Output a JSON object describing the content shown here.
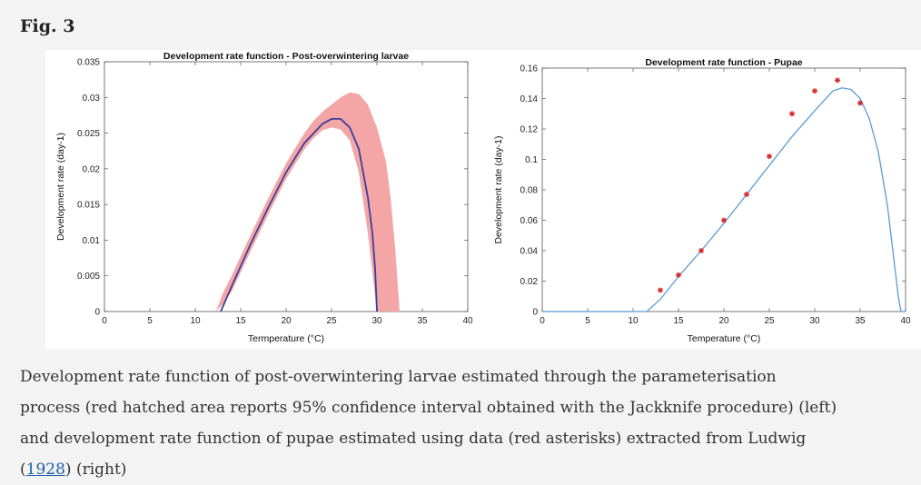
{
  "figure": {
    "label": "Fig. 3"
  },
  "caption": {
    "line1": "Development rate function of post-overwintering larvae estimated through the parameterisation",
    "line2": "process (red hatched area reports 95% confidence interval obtained with the Jackknife procedure) (left)",
    "line3": "and development rate function of pupae estimated using data (red asterisks) extracted from Ludwig",
    "line4_open": "(",
    "line4_link": "1928",
    "line4_close": ") (right)"
  },
  "chart_data": [
    {
      "type": "line",
      "title": "Development rate function - Post-overwintering larvae",
      "xlabel": "Termperature (°C)",
      "ylabel": "Development rate (day-1)",
      "xlim": [
        0,
        40
      ],
      "ylim": [
        0,
        0.035
      ],
      "xticks": [
        "0",
        "5",
        "10",
        "15",
        "20",
        "25",
        "30",
        "35",
        "40"
      ],
      "yticks": [
        "0",
        "0.005",
        "0.01",
        "0.015",
        "0.02",
        "0.025",
        "0.03",
        "0.035"
      ],
      "colors": {
        "curve": "#3b3f9b",
        "band": "#f4a6a6"
      },
      "series": [
        {
          "x": [
            12.8,
            14,
            16,
            18,
            20,
            22,
            24,
            25,
            26,
            27,
            28,
            29,
            29.5,
            29.8,
            30
          ],
          "values": [
            0,
            0.0035,
            0.0092,
            0.0145,
            0.0195,
            0.0236,
            0.0263,
            0.027,
            0.027,
            0.0258,
            0.0228,
            0.016,
            0.011,
            0.006,
            0
          ]
        }
      ],
      "confidence_band": {
        "x": [
          12.3,
          13,
          14,
          16,
          18,
          20,
          22,
          23,
          24,
          25,
          26,
          27,
          28,
          29,
          30,
          31,
          31.5,
          32,
          32.5
        ],
        "upper": [
          0,
          0.0025,
          0.005,
          0.0105,
          0.0158,
          0.0208,
          0.025,
          0.0267,
          0.028,
          0.029,
          0.03,
          0.0307,
          0.0305,
          0.029,
          0.0258,
          0.021,
          0.016,
          0.009,
          0
        ],
        "lower": [
          0,
          0.001,
          0.0028,
          0.0082,
          0.0135,
          0.0186,
          0.0227,
          0.0243,
          0.0254,
          0.0258,
          0.0255,
          0.024,
          0.0195,
          0.011,
          0,
          0,
          0,
          0,
          0
        ]
      }
    },
    {
      "type": "scatter",
      "title": "Development rate function - Pupae",
      "xlabel": "Temperature (°C)",
      "ylabel": "Development rate (day-1)",
      "xlim": [
        0,
        40
      ],
      "ylim": [
        0,
        0.16
      ],
      "xticks": [
        "0",
        "5",
        "10",
        "15",
        "20",
        "25",
        "30",
        "35",
        "40"
      ],
      "yticks": [
        "0",
        "0.02",
        "0.04",
        "0.06",
        "0.08",
        "0.1",
        "0.12",
        "0.14",
        "0.16"
      ],
      "colors": {
        "curve": "#5b9bd5",
        "points": "#d62728"
      },
      "points": {
        "x": [
          13,
          15,
          17.5,
          20,
          22.5,
          25,
          27.5,
          30,
          32.5,
          35
        ],
        "values": [
          0.014,
          0.024,
          0.04,
          0.06,
          0.077,
          0.102,
          0.13,
          0.145,
          0.152,
          0.137
        ]
      },
      "curve": {
        "x": [
          0,
          11.5,
          13,
          15,
          17.5,
          20,
          22.5,
          25,
          27.5,
          30,
          32,
          33,
          34,
          35,
          36,
          37,
          38,
          38.7,
          39.2,
          39.5,
          40
        ],
        "values": [
          0,
          0,
          0.008,
          0.023,
          0.04,
          0.058,
          0.077,
          0.096,
          0.115,
          0.132,
          0.145,
          0.147,
          0.146,
          0.14,
          0.127,
          0.105,
          0.07,
          0.035,
          0.01,
          0,
          0
        ]
      }
    }
  ]
}
